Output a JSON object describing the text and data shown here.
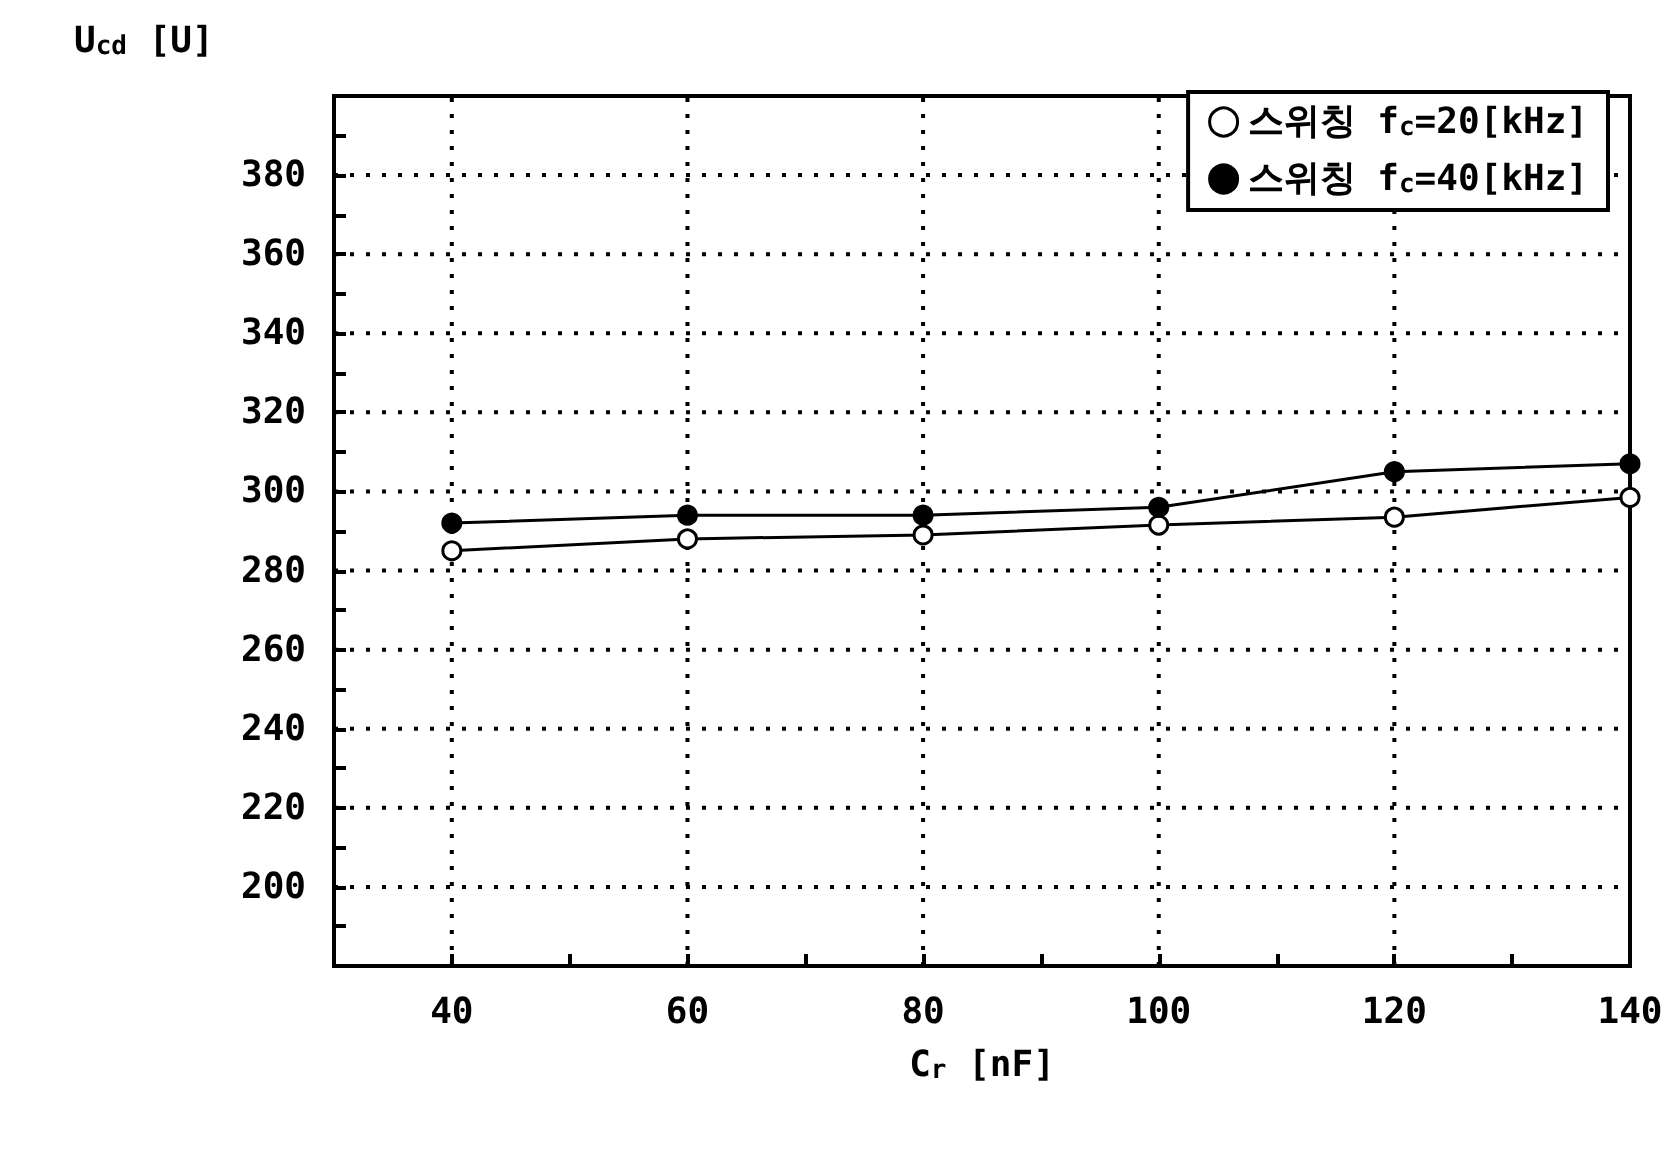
{
  "chart_data": {
    "type": "line",
    "xlabel": "C$_{r}$ [nF]",
    "ylabel": "U$_{cd}$ [U]",
    "x": [
      40,
      60,
      80,
      100,
      120,
      140
    ],
    "series": [
      {
        "name": "스위칭 f$_{c}$=20[kHz]",
        "color": "#ffffff",
        "marker": "circle",
        "values": [
          285,
          288,
          289,
          291.5,
          293.5,
          298.5
        ]
      },
      {
        "name": "스위칭 f$_{c}$=40[kHz]",
        "color": "#000000",
        "marker": "circle",
        "values": [
          292,
          294,
          294,
          296,
          305,
          307
        ]
      }
    ],
    "xlim": [
      30,
      140
    ],
    "xticks": [
      {
        "value": 30,
        "label": null
      },
      40,
      {
        "value": 50,
        "label": null
      },
      60,
      {
        "value": 70,
        "label": null
      },
      80,
      {
        "value": 90,
        "label": null
      },
      100,
      {
        "value": 110,
        "label": null
      },
      120,
      {
        "value": 130,
        "label": null
      },
      140
    ],
    "ylim": [
      180,
      400
    ],
    "yticks": [
      {
        "value": 190,
        "label": null
      },
      200,
      {
        "value": 210,
        "label": null
      },
      220,
      {
        "value": 230,
        "label": null
      },
      240,
      {
        "value": 250,
        "label": null
      },
      260,
      {
        "value": 270,
        "label": null
      },
      280,
      {
        "value": 290,
        "label": null
      },
      300,
      {
        "value": 310,
        "label": null
      },
      320,
      {
        "value": 330,
        "label": null
      },
      340,
      {
        "value": 350,
        "label": null
      },
      360,
      {
        "value": 370,
        "label": null
      },
      380,
      {
        "value": 390,
        "label": null
      }
    ],
    "grid": true,
    "legend": "top right",
    "line_style": "solid"
  }
}
